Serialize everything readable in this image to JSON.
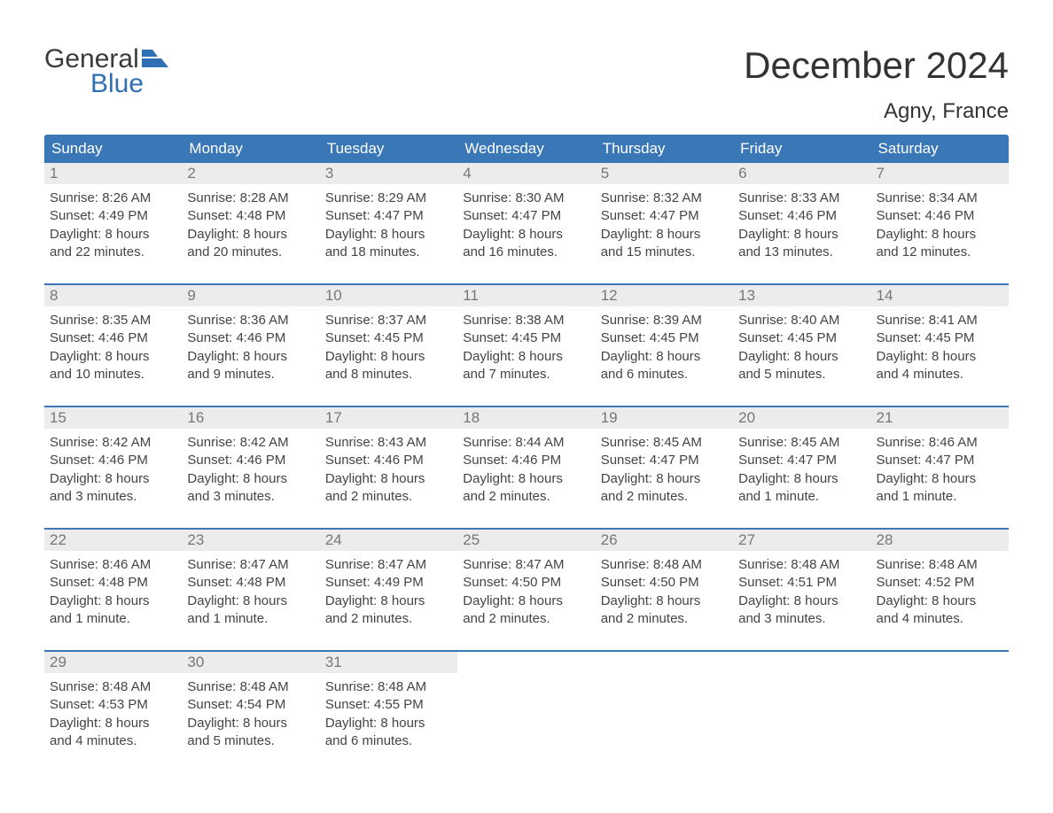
{
  "logo": {
    "word1": "General",
    "word2": "Blue"
  },
  "title": "December 2024",
  "location": "Agny, France",
  "colors": {
    "header_bg": "#3a77b7",
    "header_text": "#ffffff",
    "daynum_bg": "#ececec",
    "daynum_text": "#777777",
    "body_text": "#444444",
    "logo_dark": "#3a3a3a",
    "logo_blue": "#2f6fb4",
    "page_bg": "#ffffff"
  },
  "day_headers": [
    "Sunday",
    "Monday",
    "Tuesday",
    "Wednesday",
    "Thursday",
    "Friday",
    "Saturday"
  ],
  "weeks": [
    [
      {
        "n": "1",
        "sunrise": "Sunrise: 8:26 AM",
        "sunset": "Sunset: 4:49 PM",
        "day1": "Daylight: 8 hours",
        "day2": "and 22 minutes."
      },
      {
        "n": "2",
        "sunrise": "Sunrise: 8:28 AM",
        "sunset": "Sunset: 4:48 PM",
        "day1": "Daylight: 8 hours",
        "day2": "and 20 minutes."
      },
      {
        "n": "3",
        "sunrise": "Sunrise: 8:29 AM",
        "sunset": "Sunset: 4:47 PM",
        "day1": "Daylight: 8 hours",
        "day2": "and 18 minutes."
      },
      {
        "n": "4",
        "sunrise": "Sunrise: 8:30 AM",
        "sunset": "Sunset: 4:47 PM",
        "day1": "Daylight: 8 hours",
        "day2": "and 16 minutes."
      },
      {
        "n": "5",
        "sunrise": "Sunrise: 8:32 AM",
        "sunset": "Sunset: 4:47 PM",
        "day1": "Daylight: 8 hours",
        "day2": "and 15 minutes."
      },
      {
        "n": "6",
        "sunrise": "Sunrise: 8:33 AM",
        "sunset": "Sunset: 4:46 PM",
        "day1": "Daylight: 8 hours",
        "day2": "and 13 minutes."
      },
      {
        "n": "7",
        "sunrise": "Sunrise: 8:34 AM",
        "sunset": "Sunset: 4:46 PM",
        "day1": "Daylight: 8 hours",
        "day2": "and 12 minutes."
      }
    ],
    [
      {
        "n": "8",
        "sunrise": "Sunrise: 8:35 AM",
        "sunset": "Sunset: 4:46 PM",
        "day1": "Daylight: 8 hours",
        "day2": "and 10 minutes."
      },
      {
        "n": "9",
        "sunrise": "Sunrise: 8:36 AM",
        "sunset": "Sunset: 4:46 PM",
        "day1": "Daylight: 8 hours",
        "day2": "and 9 minutes."
      },
      {
        "n": "10",
        "sunrise": "Sunrise: 8:37 AM",
        "sunset": "Sunset: 4:45 PM",
        "day1": "Daylight: 8 hours",
        "day2": "and 8 minutes."
      },
      {
        "n": "11",
        "sunrise": "Sunrise: 8:38 AM",
        "sunset": "Sunset: 4:45 PM",
        "day1": "Daylight: 8 hours",
        "day2": "and 7 minutes."
      },
      {
        "n": "12",
        "sunrise": "Sunrise: 8:39 AM",
        "sunset": "Sunset: 4:45 PM",
        "day1": "Daylight: 8 hours",
        "day2": "and 6 minutes."
      },
      {
        "n": "13",
        "sunrise": "Sunrise: 8:40 AM",
        "sunset": "Sunset: 4:45 PM",
        "day1": "Daylight: 8 hours",
        "day2": "and 5 minutes."
      },
      {
        "n": "14",
        "sunrise": "Sunrise: 8:41 AM",
        "sunset": "Sunset: 4:45 PM",
        "day1": "Daylight: 8 hours",
        "day2": "and 4 minutes."
      }
    ],
    [
      {
        "n": "15",
        "sunrise": "Sunrise: 8:42 AM",
        "sunset": "Sunset: 4:46 PM",
        "day1": "Daylight: 8 hours",
        "day2": "and 3 minutes."
      },
      {
        "n": "16",
        "sunrise": "Sunrise: 8:42 AM",
        "sunset": "Sunset: 4:46 PM",
        "day1": "Daylight: 8 hours",
        "day2": "and 3 minutes."
      },
      {
        "n": "17",
        "sunrise": "Sunrise: 8:43 AM",
        "sunset": "Sunset: 4:46 PM",
        "day1": "Daylight: 8 hours",
        "day2": "and 2 minutes."
      },
      {
        "n": "18",
        "sunrise": "Sunrise: 8:44 AM",
        "sunset": "Sunset: 4:46 PM",
        "day1": "Daylight: 8 hours",
        "day2": "and 2 minutes."
      },
      {
        "n": "19",
        "sunrise": "Sunrise: 8:45 AM",
        "sunset": "Sunset: 4:47 PM",
        "day1": "Daylight: 8 hours",
        "day2": "and 2 minutes."
      },
      {
        "n": "20",
        "sunrise": "Sunrise: 8:45 AM",
        "sunset": "Sunset: 4:47 PM",
        "day1": "Daylight: 8 hours",
        "day2": "and 1 minute."
      },
      {
        "n": "21",
        "sunrise": "Sunrise: 8:46 AM",
        "sunset": "Sunset: 4:47 PM",
        "day1": "Daylight: 8 hours",
        "day2": "and 1 minute."
      }
    ],
    [
      {
        "n": "22",
        "sunrise": "Sunrise: 8:46 AM",
        "sunset": "Sunset: 4:48 PM",
        "day1": "Daylight: 8 hours",
        "day2": "and 1 minute."
      },
      {
        "n": "23",
        "sunrise": "Sunrise: 8:47 AM",
        "sunset": "Sunset: 4:48 PM",
        "day1": "Daylight: 8 hours",
        "day2": "and 1 minute."
      },
      {
        "n": "24",
        "sunrise": "Sunrise: 8:47 AM",
        "sunset": "Sunset: 4:49 PM",
        "day1": "Daylight: 8 hours",
        "day2": "and 2 minutes."
      },
      {
        "n": "25",
        "sunrise": "Sunrise: 8:47 AM",
        "sunset": "Sunset: 4:50 PM",
        "day1": "Daylight: 8 hours",
        "day2": "and 2 minutes."
      },
      {
        "n": "26",
        "sunrise": "Sunrise: 8:48 AM",
        "sunset": "Sunset: 4:50 PM",
        "day1": "Daylight: 8 hours",
        "day2": "and 2 minutes."
      },
      {
        "n": "27",
        "sunrise": "Sunrise: 8:48 AM",
        "sunset": "Sunset: 4:51 PM",
        "day1": "Daylight: 8 hours",
        "day2": "and 3 minutes."
      },
      {
        "n": "28",
        "sunrise": "Sunrise: 8:48 AM",
        "sunset": "Sunset: 4:52 PM",
        "day1": "Daylight: 8 hours",
        "day2": "and 4 minutes."
      }
    ],
    [
      {
        "n": "29",
        "sunrise": "Sunrise: 8:48 AM",
        "sunset": "Sunset: 4:53 PM",
        "day1": "Daylight: 8 hours",
        "day2": "and 4 minutes."
      },
      {
        "n": "30",
        "sunrise": "Sunrise: 8:48 AM",
        "sunset": "Sunset: 4:54 PM",
        "day1": "Daylight: 8 hours",
        "day2": "and 5 minutes."
      },
      {
        "n": "31",
        "sunrise": "Sunrise: 8:48 AM",
        "sunset": "Sunset: 4:55 PM",
        "day1": "Daylight: 8 hours",
        "day2": "and 6 minutes."
      },
      null,
      null,
      null,
      null
    ]
  ]
}
